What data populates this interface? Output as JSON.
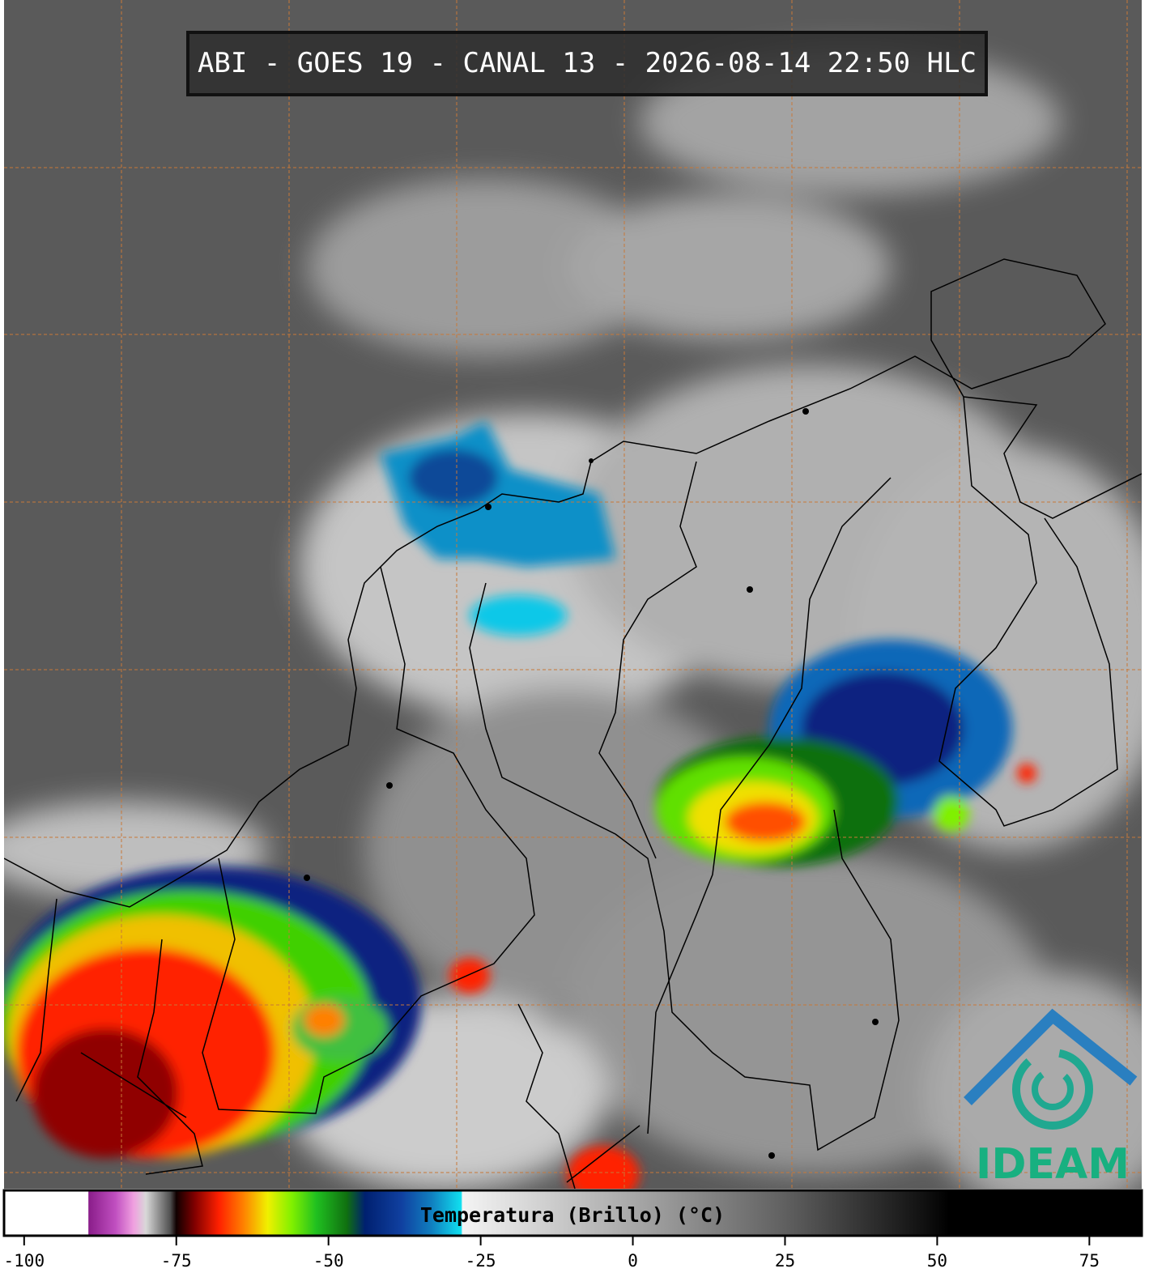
{
  "map": {
    "title": "ABI - GOES 19 - CANAL 13 - 2026-08-14 22:50 HLC",
    "logo_text": "IDEAM",
    "colorbar": {
      "label": "Temperatura (Brillo) (°C)",
      "lim": [
        -103.3,
        83.6
      ],
      "ticks": [
        -100,
        -75,
        -50,
        -25,
        0,
        25,
        50,
        75
      ],
      "colorscale": [
        [
          -103.3,
          "#ffffff"
        ],
        [
          -89.5,
          "#ffffff"
        ],
        [
          -89.4,
          "#8a1d8a"
        ],
        [
          -85,
          "#c04fc0"
        ],
        [
          -82,
          "#f0a0e0"
        ],
        [
          -80,
          "#d8d8d8"
        ],
        [
          -76,
          "#505050"
        ],
        [
          -75,
          "#100000"
        ],
        [
          -72,
          "#800000"
        ],
        [
          -68,
          "#ff2000"
        ],
        [
          -64,
          "#ff8000"
        ],
        [
          -60,
          "#f0f000"
        ],
        [
          -56,
          "#80f000"
        ],
        [
          -52,
          "#20c020"
        ],
        [
          -47,
          "#107010"
        ],
        [
          -44,
          "#002070"
        ],
        [
          -38,
          "#1040a0"
        ],
        [
          -33,
          "#1080c0"
        ],
        [
          -28.2,
          "#10e0f0"
        ],
        [
          -28,
          "#f4f4f4"
        ],
        [
          0,
          "#a8a8a8"
        ],
        [
          25,
          "#606060"
        ],
        [
          48,
          "#101010"
        ],
        [
          52,
          "#000000"
        ],
        [
          83.6,
          "#000000"
        ]
      ]
    }
  }
}
